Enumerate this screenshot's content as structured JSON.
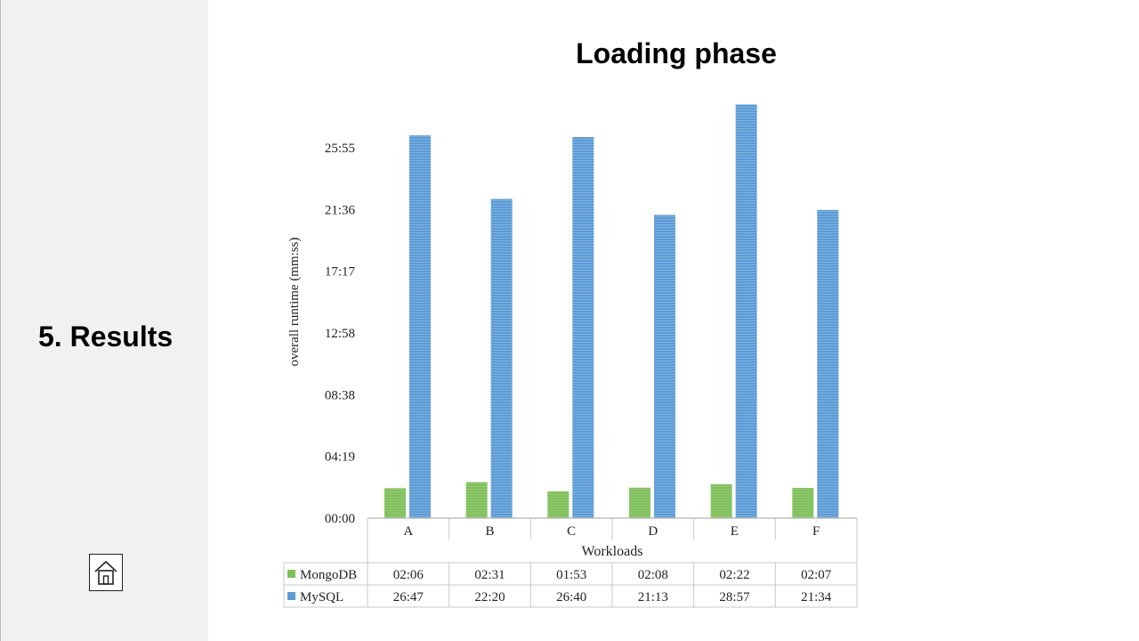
{
  "sidebar": {
    "section_title": "5. Results",
    "home_icon": "home-icon"
  },
  "slide": {
    "title": "Loading phase"
  },
  "chart_data": {
    "type": "bar",
    "title": "",
    "xlabel": "Workloads",
    "ylabel": "overall runtime (mm:ss)",
    "categories": [
      "A",
      "B",
      "C",
      "D",
      "E",
      "F"
    ],
    "y_tick_labels": [
      "00:00",
      "04:19",
      "08:38",
      "12:58",
      "17:17",
      "21:36",
      "25:55"
    ],
    "y_tick_values_seconds": [
      0,
      259,
      518,
      778,
      1037,
      1296,
      1555
    ],
    "ylim_seconds": [
      0,
      1780
    ],
    "grid": false,
    "legend": "data-table",
    "series": [
      {
        "name": "MongoDB",
        "color": "#7fbf5a",
        "labels": [
          "02:06",
          "02:31",
          "01:53",
          "02:08",
          "02:22",
          "02:07"
        ],
        "values_seconds": [
          126,
          151,
          113,
          128,
          142,
          127
        ]
      },
      {
        "name": "MySQL",
        "color": "#5b9bd5",
        "labels": [
          "26:47",
          "22:20",
          "26:40",
          "21:13",
          "28:57",
          "21:34"
        ],
        "values_seconds": [
          1607,
          1340,
          1600,
          1273,
          1737,
          1294
        ]
      }
    ]
  }
}
